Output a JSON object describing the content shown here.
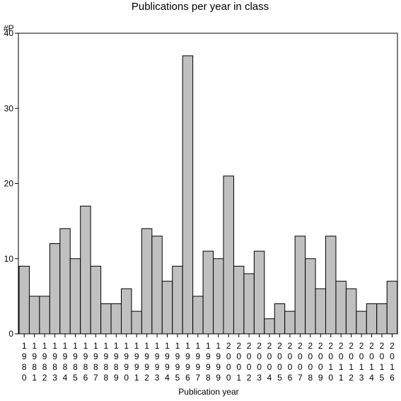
{
  "chart_data": {
    "type": "bar",
    "title": "Publications per year in class",
    "xlabel": "Publication year",
    "ylabel": "#P",
    "ylim": [
      0,
      40
    ],
    "yticks": [
      "0",
      "10",
      "20",
      "30",
      "40"
    ],
    "grid": false,
    "categories": [
      "1980",
      "1981",
      "1982",
      "1983",
      "1984",
      "1985",
      "1986",
      "1987",
      "1988",
      "1989",
      "1990",
      "1991",
      "1992",
      "1993",
      "1994",
      "1995",
      "1996",
      "1997",
      "1998",
      "1999",
      "2000",
      "2001",
      "2002",
      "2003",
      "2004",
      "2005",
      "2006",
      "2007",
      "2008",
      "2009",
      "2010",
      "2011",
      "2012",
      "2013",
      "2014",
      "2015",
      "2016"
    ],
    "values": [
      9,
      5,
      5,
      12,
      14,
      10,
      17,
      9,
      4,
      4,
      6,
      3,
      14,
      13,
      7,
      9,
      37,
      5,
      11,
      10,
      21,
      9,
      8,
      11,
      2,
      4,
      3,
      13,
      10,
      6,
      13,
      7,
      6,
      3,
      4,
      4,
      7
    ],
    "colors": {
      "bar_fill": "#c0c0c0",
      "bar_stroke": "#000000",
      "axis": "#000000"
    }
  }
}
